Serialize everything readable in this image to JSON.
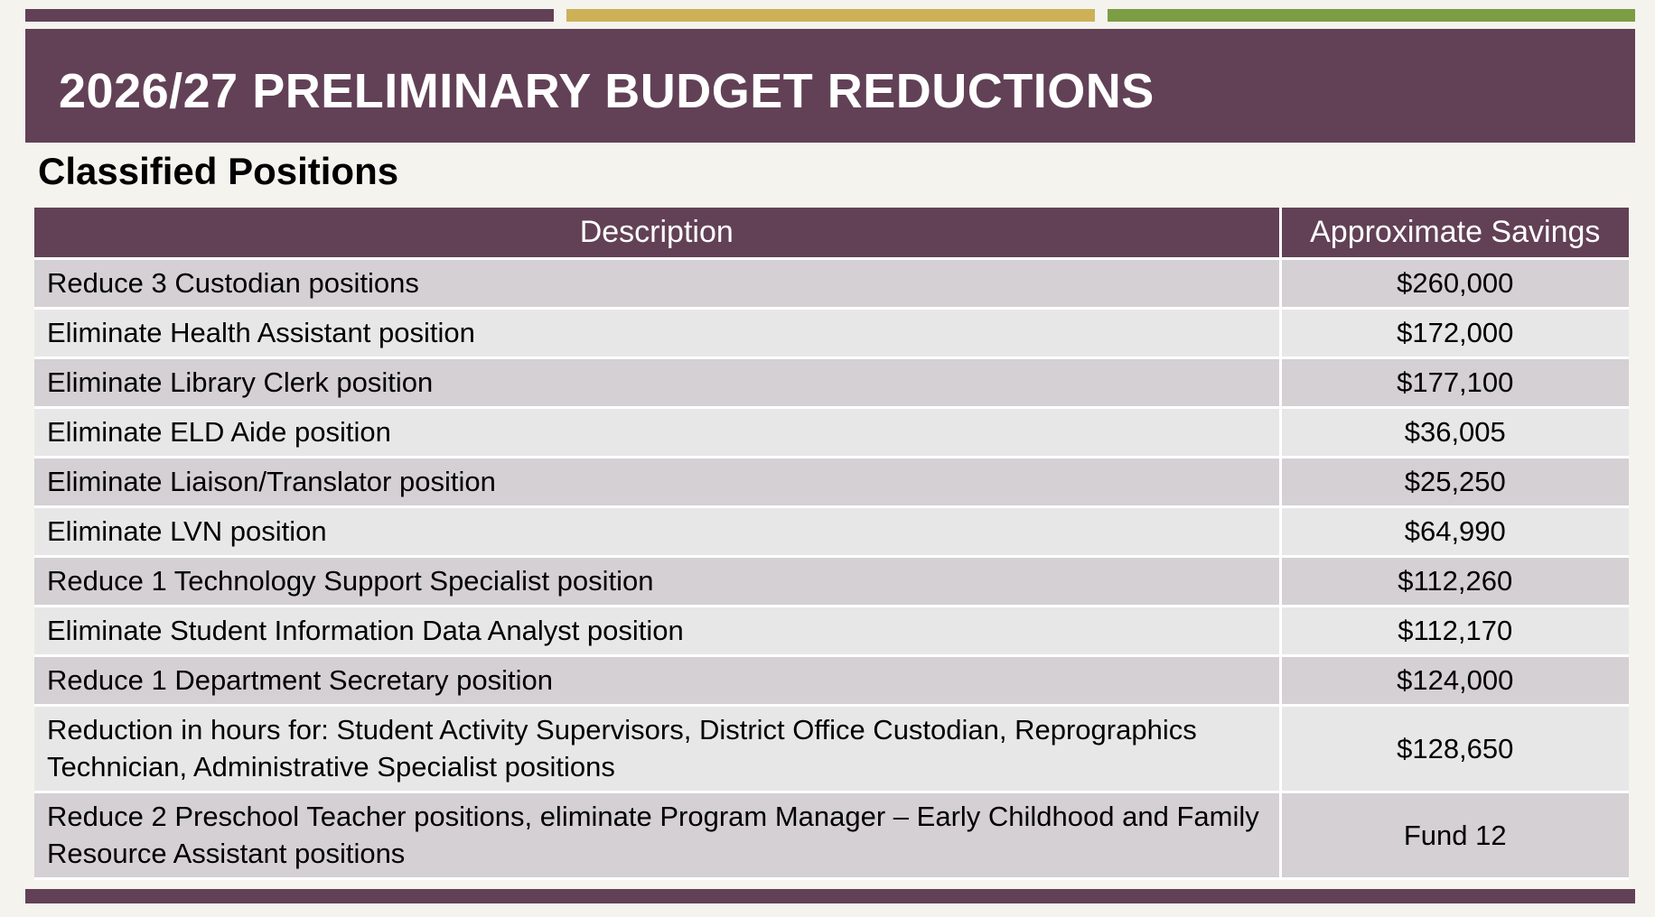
{
  "slide": {
    "title": "2026/27 PRELIMINARY BUDGET REDUCTIONS",
    "subtitle": "Classified Positions",
    "colors": {
      "primary": "#624156",
      "accent_gold": "#cdb159",
      "accent_green": "#7c9d43",
      "row_dark": "#d4d0d4",
      "row_light": "#e8e7e8"
    }
  },
  "table": {
    "headers": [
      "Description",
      "Approximate Savings"
    ],
    "rows": [
      {
        "description": "Reduce 3 Custodian positions",
        "savings": "$260,000"
      },
      {
        "description": "Eliminate Health Assistant position",
        "savings": "$172,000"
      },
      {
        "description": "Eliminate Library Clerk position",
        "savings": "$177,100"
      },
      {
        "description": "Eliminate ELD Aide position",
        "savings": "$36,005"
      },
      {
        "description": "Eliminate Liaison/Translator position",
        "savings": "$25,250"
      },
      {
        "description": "Eliminate LVN position",
        "savings": "$64,990"
      },
      {
        "description": "Reduce 1 Technology Support Specialist position",
        "savings": "$112,260"
      },
      {
        "description": "Eliminate Student Information Data Analyst position",
        "savings": "$112,170"
      },
      {
        "description": "Reduce 1 Department Secretary position",
        "savings": "$124,000"
      },
      {
        "description": "Reduction in hours for: Student Activity Supervisors, District Office Custodian, Reprographics Technician, Administrative Specialist positions",
        "savings": "$128,650"
      },
      {
        "description": "Reduce 2 Preschool Teacher positions, eliminate Program Manager – Early Childhood and Family Resource Assistant positions",
        "savings": "Fund 12"
      }
    ]
  }
}
